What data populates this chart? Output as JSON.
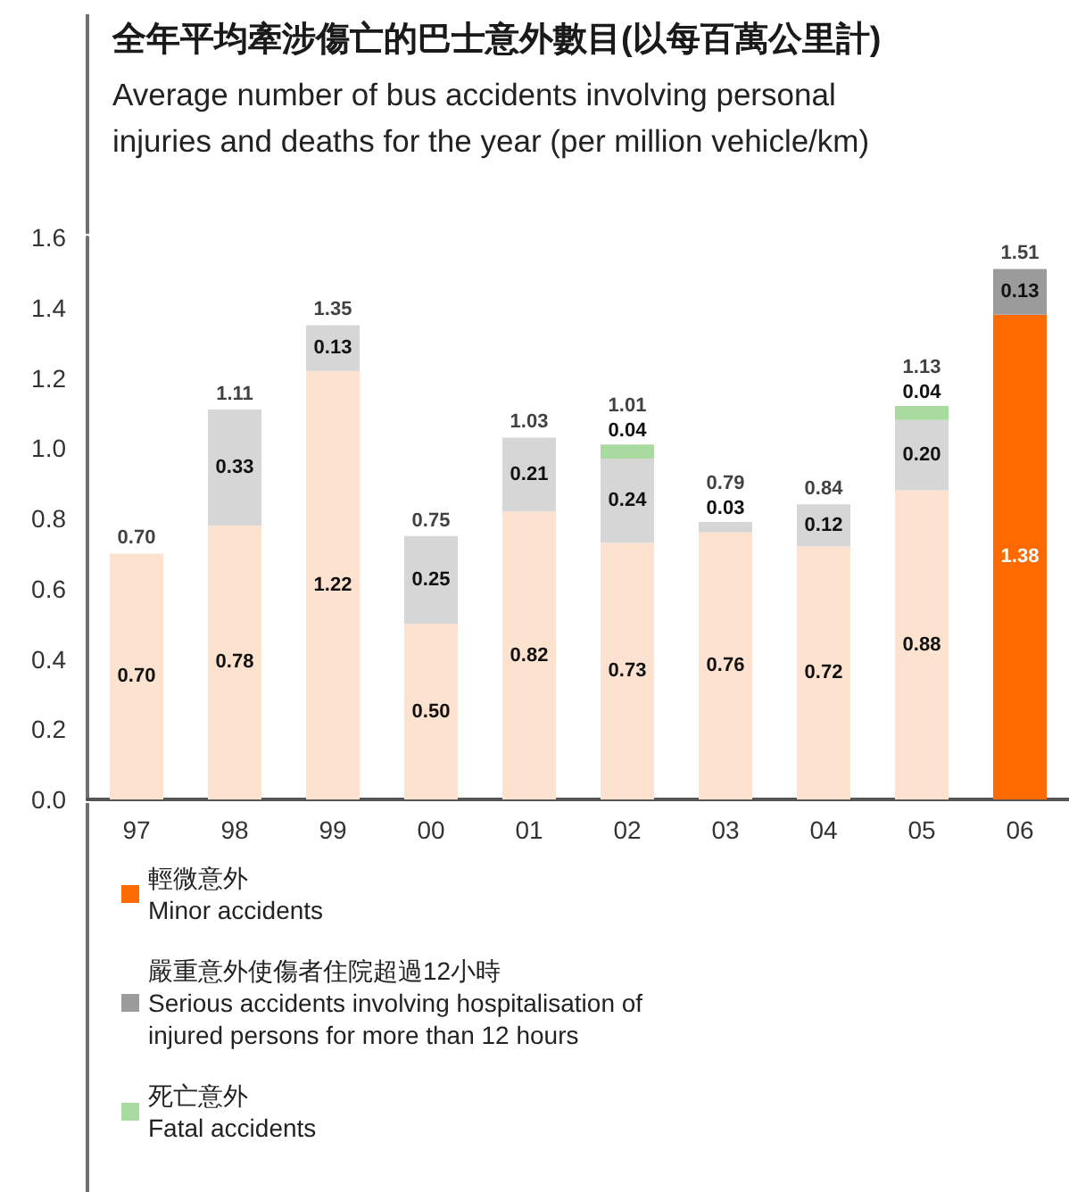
{
  "chart_data": {
    "type": "bar",
    "title": "全年平均牽涉傷亡的巴士意外數目(以每百萬公里計)",
    "subtitle": "Average number of bus accidents involving personal injuries and deaths for the year (per million vehicle/km)",
    "categories": [
      "97",
      "98",
      "99",
      "00",
      "01",
      "02",
      "03",
      "04",
      "05",
      "06"
    ],
    "stacked": true,
    "series": [
      {
        "name": "輕微意外\nMinor accidents",
        "color": "#ff6a00",
        "colors": [
          "#fde3cf",
          "#fde3cf",
          "#fde3cf",
          "#fde3cf",
          "#fde3cf",
          "#fde3cf",
          "#fde3cf",
          "#fde3cf",
          "#fde3cf",
          "#ff6a00"
        ],
        "values": [
          0.7,
          0.78,
          1.22,
          0.5,
          0.82,
          0.73,
          0.76,
          0.72,
          0.88,
          1.38
        ],
        "value_labels": [
          "0.70",
          "0.78",
          "1.22",
          "0.50",
          "0.82",
          "0.73",
          "0.76",
          "0.72",
          "0.88",
          "1.38"
        ]
      },
      {
        "name": "嚴重意外使傷者住院超過12小時\nSerious accidents involving hospitalisation of injured persons for more than 12 hours",
        "color": "#9b9b9b",
        "colors": [
          null,
          "#d6d6d6",
          "#d6d6d6",
          "#d6d6d6",
          "#d6d6d6",
          "#d6d6d6",
          "#d6d6d6",
          "#d6d6d6",
          "#d6d6d6",
          "#9b9b9b"
        ],
        "values": [
          null,
          0.33,
          0.13,
          0.25,
          0.21,
          0.24,
          0.03,
          0.12,
          0.2,
          0.13
        ],
        "value_labels": [
          null,
          "0.33",
          "0.13",
          "0.25",
          "0.21",
          "0.24",
          "0.03",
          "0.12",
          "0.20",
          "0.13"
        ]
      },
      {
        "name": "死亡意外\nFatal accidents",
        "color": "#a9dba0",
        "colors": [
          null,
          null,
          null,
          null,
          null,
          "#a9dba0",
          null,
          null,
          "#a9dba0",
          null
        ],
        "values": [
          null,
          null,
          null,
          null,
          null,
          0.04,
          null,
          null,
          0.04,
          null
        ],
        "value_labels": [
          null,
          null,
          null,
          null,
          null,
          "0.04",
          null,
          null,
          "0.04",
          null
        ]
      }
    ],
    "totals": [
      "0.70",
      "1.11",
      "1.35",
      "0.75",
      "1.03",
      "1.01",
      "0.79",
      "0.84",
      "1.13",
      "1.51"
    ],
    "ylim": [
      0,
      1.6
    ],
    "yticks": [
      {
        "value": 0,
        "label": "0.0"
      },
      0.2,
      0.4,
      0.6,
      0.8,
      {
        "value": 1,
        "label": "1.0"
      },
      1.2,
      1.4,
      1.6
    ],
    "legend": "bottom left"
  }
}
